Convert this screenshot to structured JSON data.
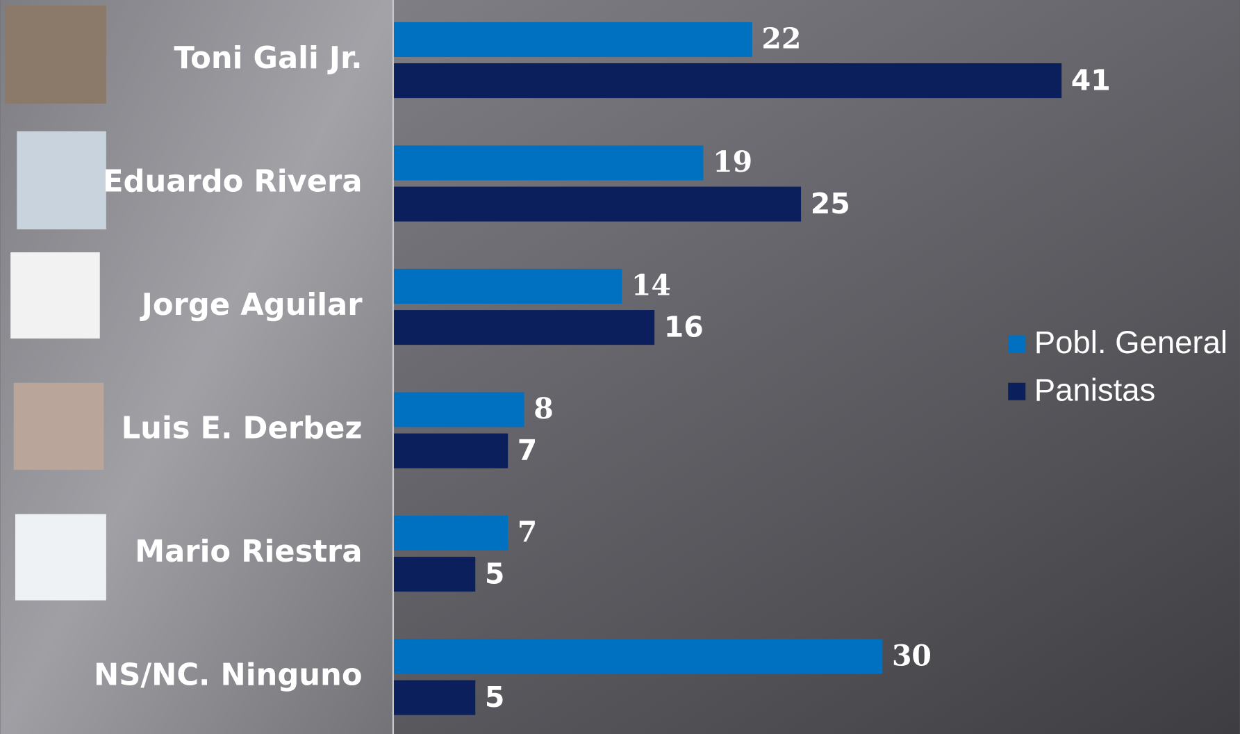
{
  "chart_data": {
    "type": "bar",
    "orientation": "horizontal",
    "categories": [
      "Toni Gali Jr.",
      "Eduardo Rivera",
      "Jorge Aguilar",
      "Luis E. Derbez",
      "Mario Riestra",
      "NS/NC. Ninguno"
    ],
    "series": [
      {
        "name": "Pobl. General",
        "color": "#0070c0",
        "values": [
          22,
          19,
          14,
          8,
          7,
          30
        ]
      },
      {
        "name": "Panistas",
        "color": "#0a1f5c",
        "values": [
          41,
          25,
          16,
          7,
          5,
          5
        ]
      }
    ],
    "legend": "right"
  }
}
